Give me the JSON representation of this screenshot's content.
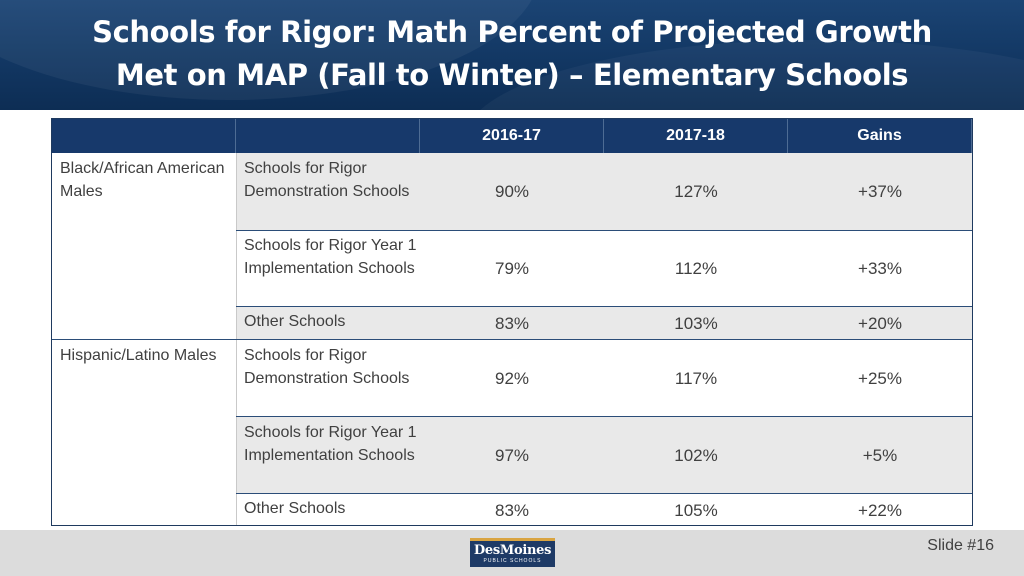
{
  "slide": {
    "title_line1": "Schools for Rigor: Math Percent of Projected Growth",
    "title_line2": "Met on MAP (Fall to Winter) – Elementary Schools",
    "slide_number": "Slide #16"
  },
  "table": {
    "headers": [
      "",
      "",
      "2016-17",
      "2017-18",
      "Gains"
    ],
    "groups": [
      {
        "label": "Black/African American Males",
        "rows": [
          {
            "school_type": "Schools for Rigor Demonstration Schools",
            "y2016": "90%",
            "y2017": "127%",
            "gain": "+37%"
          },
          {
            "school_type": "Schools for Rigor Year 1 Implementation Schools",
            "y2016": "79%",
            "y2017": "112%",
            "gain": "+33%"
          },
          {
            "school_type": "Other Schools",
            "y2016": "83%",
            "y2017": "103%",
            "gain": "+20%"
          }
        ]
      },
      {
        "label": "Hispanic/Latino Males",
        "rows": [
          {
            "school_type": "Schools for Rigor Demonstration Schools",
            "y2016": "92%",
            "y2017": "117%",
            "gain": "+25%"
          },
          {
            "school_type": "Schools for Rigor Year 1 Implementation Schools",
            "y2016": "97%",
            "y2017": "102%",
            "gain": "+5%"
          },
          {
            "school_type": "Other Schools",
            "y2016": "83%",
            "y2017": "105%",
            "gain": "+22%"
          }
        ]
      }
    ]
  },
  "logo": {
    "main": "DesMoines",
    "sub": "PUBLIC SCHOOLS"
  },
  "colors": {
    "header_band": "#123763",
    "table_header": "#17396b",
    "row_shade": "#e9e9e9",
    "footer": "#dcdcdc"
  }
}
